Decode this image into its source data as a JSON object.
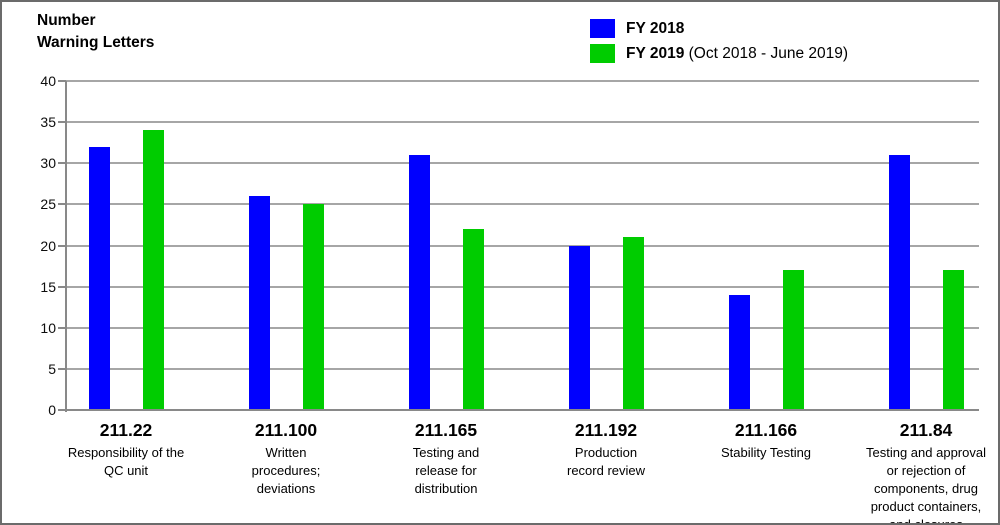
{
  "title": {
    "line1": "Number",
    "line2": "Warning Letters"
  },
  "legend": [
    {
      "label": "FY 2018",
      "suffix": "",
      "color": "#0000fe"
    },
    {
      "label": "FY 2019",
      "suffix": " (Oct 2018 - June 2019)",
      "color": "#00cc00"
    }
  ],
  "chart_data": {
    "type": "bar",
    "title": "Number Warning Letters",
    "categories": [
      {
        "code": "211.22",
        "description": "Responsibility of the  QC unit"
      },
      {
        "code": "211.100",
        "description": "Written procedures; deviations"
      },
      {
        "code": "211.165",
        "description": "Testing and release for distribution"
      },
      {
        "code": "211.192",
        "description": "Production record review"
      },
      {
        "code": "211.166",
        "description": "Stability Testing"
      },
      {
        "code": "211.84",
        "description": "Testing and approval or rejection of components, drug product containers, and closures"
      }
    ],
    "series": [
      {
        "name": "FY 2018",
        "color": "#0000fe",
        "values": [
          32,
          26,
          31,
          20,
          14,
          31
        ]
      },
      {
        "name": "FY 2019 (Oct 2018 - June 2019)",
        "color": "#00cc00",
        "values": [
          34,
          25,
          22,
          21,
          17,
          17
        ]
      }
    ],
    "xlabel": "",
    "ylabel": "Number Warning Letters",
    "ylim": [
      0,
      40
    ],
    "ytick_step": 5,
    "grid": true,
    "legend_position": "top-center",
    "gridline_color": "#a6a6a6",
    "axis_color": "#898989"
  }
}
